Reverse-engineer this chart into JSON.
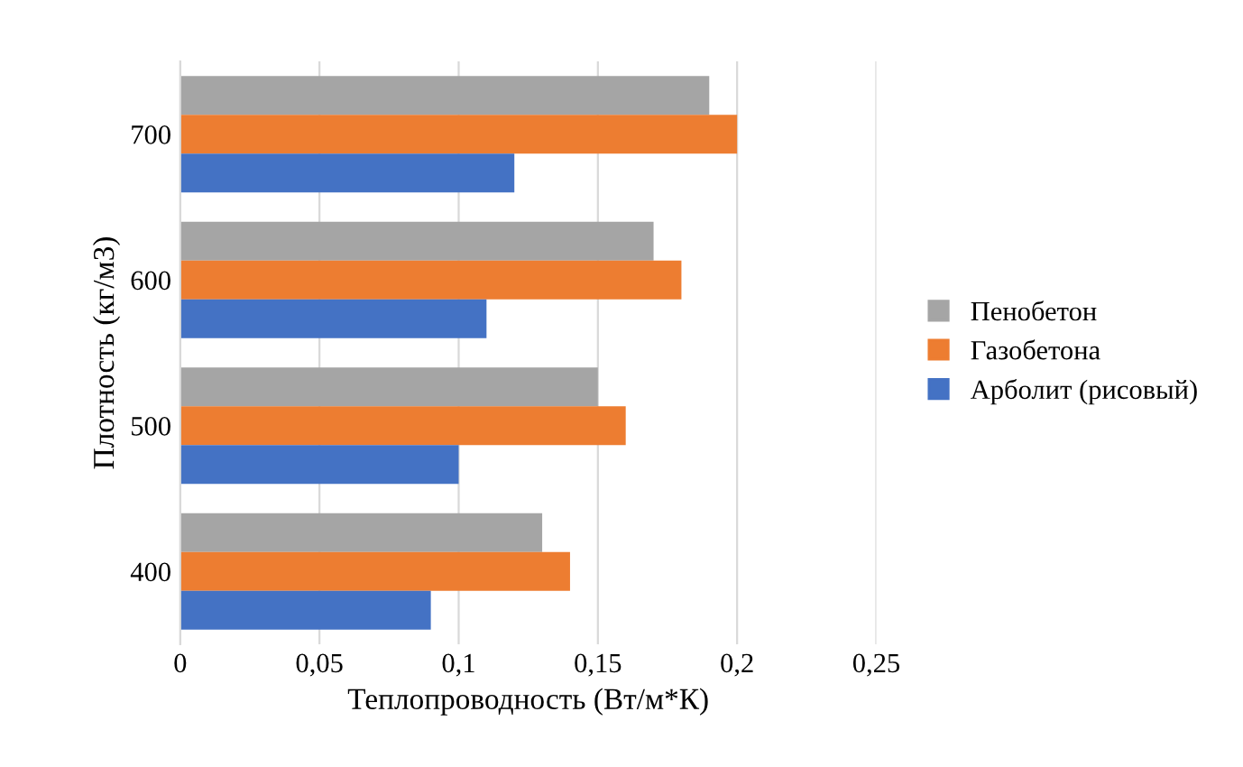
{
  "chart_data": {
    "type": "bar",
    "orientation": "horizontal",
    "xlabel": "Теплопроводность (Вт/м*К)",
    "ylabel": "Плотность (кг/м3)",
    "categories": [
      "700",
      "600",
      "500",
      "400"
    ],
    "series": [
      {
        "name": "Пенобетон",
        "color": "#a5a5a5",
        "values": [
          0.19,
          0.17,
          0.15,
          0.13
        ]
      },
      {
        "name": "Газобетона",
        "color": "#ed7d31",
        "values": [
          0.2,
          0.18,
          0.16,
          0.14
        ]
      },
      {
        "name": "Арболит (рисовый)",
        "color": "#4472c4",
        "values": [
          0.12,
          0.11,
          0.1,
          0.09
        ]
      }
    ],
    "xlim": [
      0,
      0.25
    ],
    "xticks": [
      0,
      {
        "value": 0.05,
        "label": "0,05"
      },
      {
        "value": 0.1,
        "label": "0,1"
      },
      {
        "value": 0.15,
        "label": "0,15"
      },
      {
        "value": 0.2,
        "label": "0,2"
      },
      {
        "value": 0.25,
        "label": "0,25"
      }
    ],
    "grid": "x",
    "legend": "right"
  }
}
